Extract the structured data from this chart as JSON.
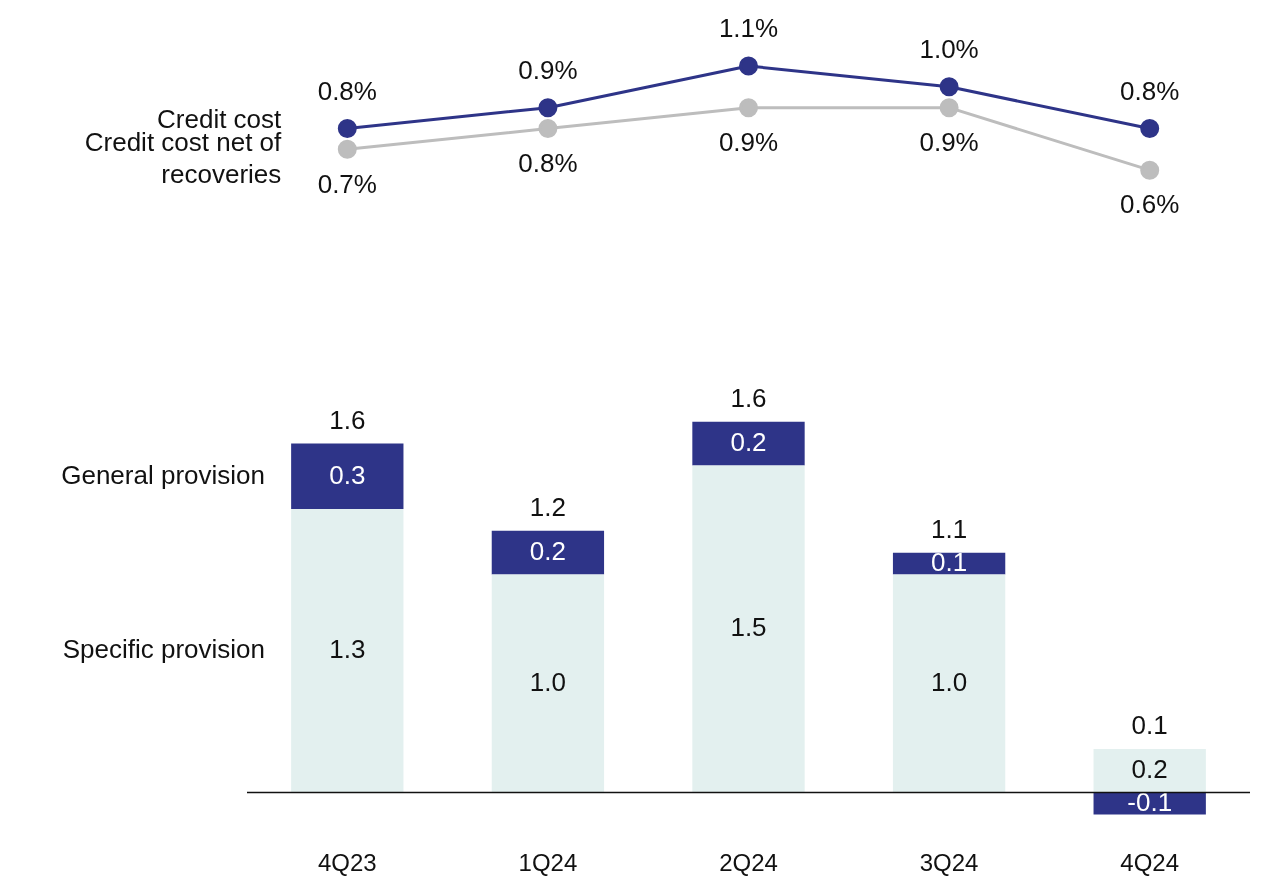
{
  "chart_data": [
    {
      "type": "line",
      "categories": [
        null,
        null,
        null,
        null,
        null
      ],
      "tick_labels": false,
      "marker": "circle",
      "line_style": "solid",
      "series": [
        {
          "name": "Credit cost",
          "color": "#2e3488",
          "values": [
            0.8,
            0.9,
            1.1,
            1.0,
            0.8
          ],
          "value_labels": [
            "0.8%",
            "0.9%",
            "1.1%",
            "1.0%",
            "0.8%"
          ]
        },
        {
          "name": "Credit cost net of recoveries",
          "color": "#bdbdbd",
          "values": [
            0.7,
            0.8,
            0.9,
            0.9,
            0.6
          ],
          "value_labels": [
            "0.7%",
            "0.8%",
            "0.9%",
            "0.9%",
            "0.6%"
          ]
        }
      ]
    },
    {
      "type": "bar",
      "stacked": true,
      "categories": [
        "4Q23",
        "1Q24",
        "2Q24",
        "3Q24",
        "4Q24"
      ],
      "tick_labels": "x",
      "totals": [
        "1.6",
        "1.2",
        "1.6",
        "1.1",
        "0.1"
      ],
      "series": [
        {
          "name": "Specific provision",
          "color": "#e3f0ef",
          "values": [
            1.3,
            1.0,
            1.5,
            1.0,
            0.2
          ],
          "value_labels": [
            "1.3",
            "1.0",
            "1.5",
            "1.0",
            "0.2"
          ]
        },
        {
          "name": "General provision",
          "color": "#2e3488",
          "values": [
            0.3,
            0.2,
            0.2,
            0.1,
            -0.1
          ],
          "value_labels": [
            "0.3",
            "0.2",
            "0.2",
            "0.1",
            "-0.1"
          ]
        }
      ]
    }
  ]
}
